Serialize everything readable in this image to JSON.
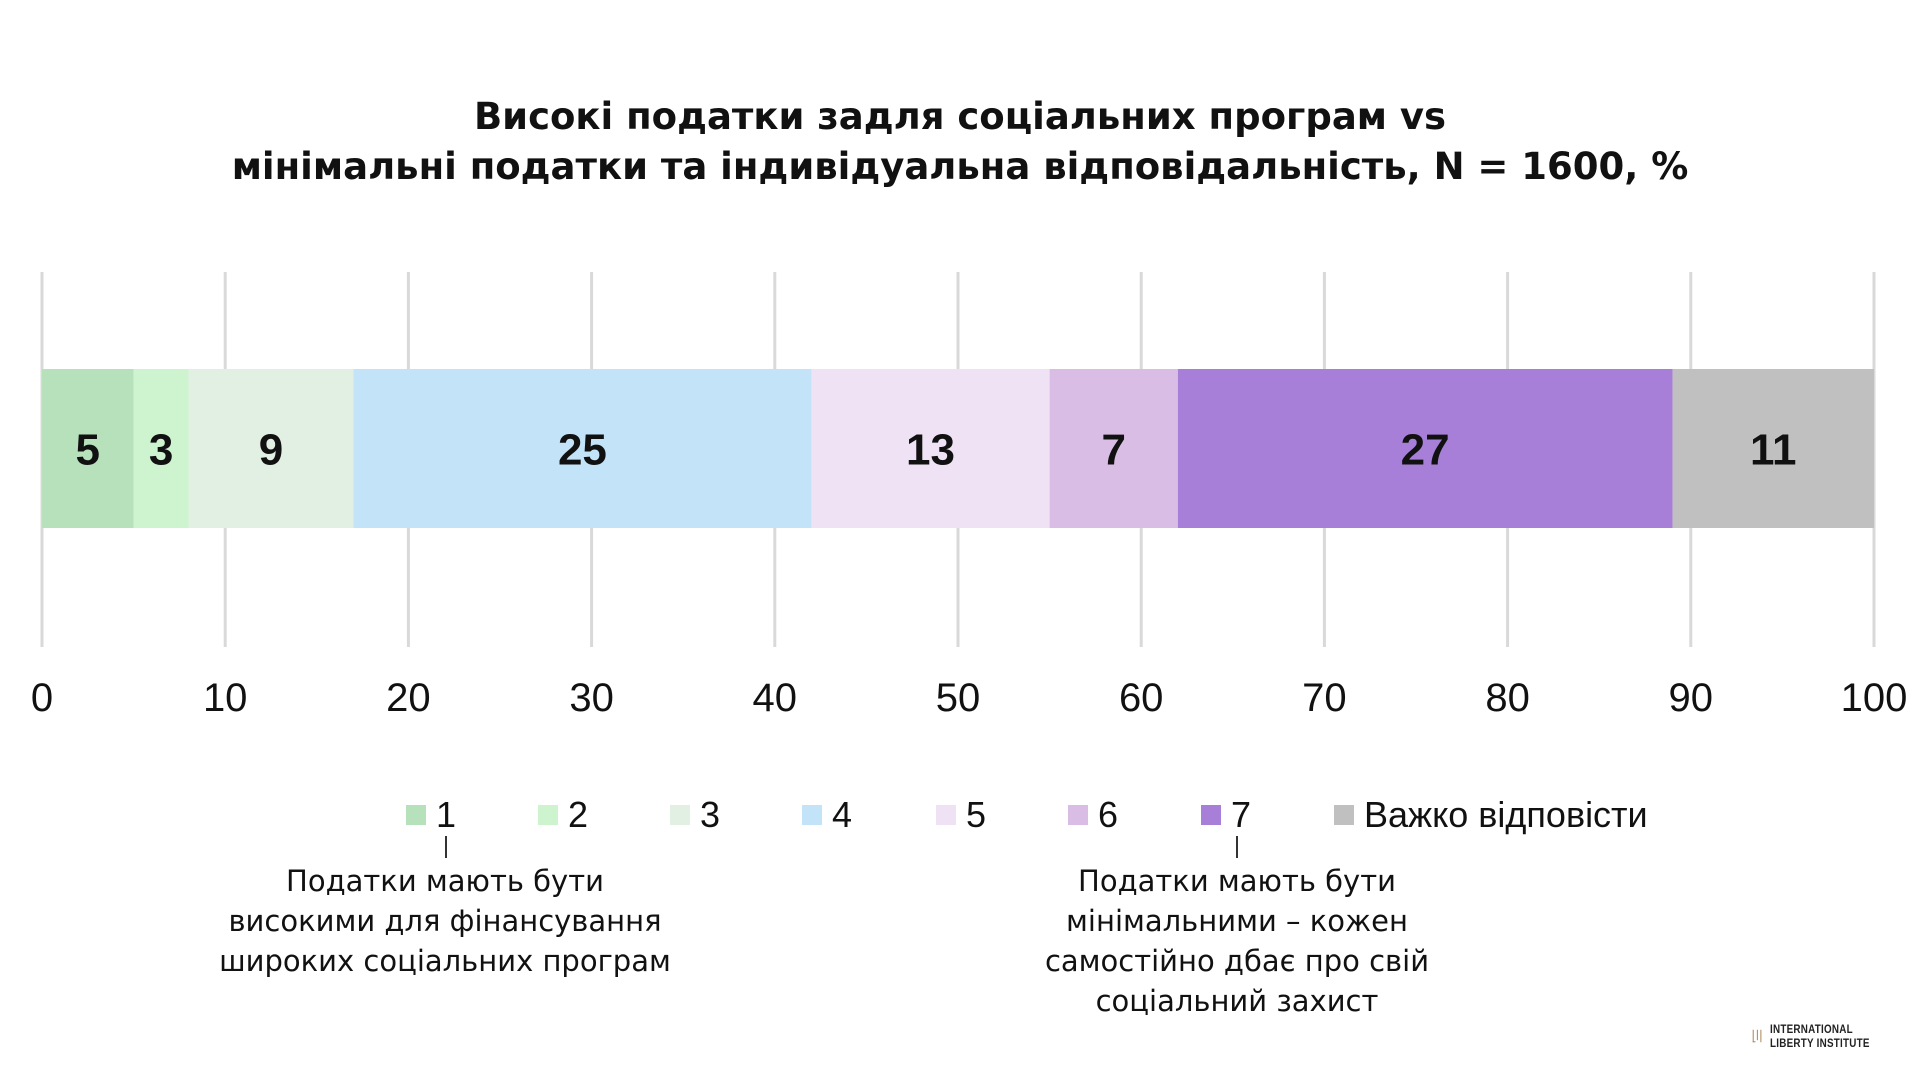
{
  "title": {
    "line1": "Високі податки задля соціальних програм vs",
    "line2": "мінімальні податки та індивідуальна відповідальність, N = 1600, %"
  },
  "chart_data": {
    "type": "bar",
    "orientation": "horizontal-stacked-100",
    "title": "Високі податки задля соціальних програм vs мінімальні податки та індивідуальна відповідальність, N = 1600, %",
    "xlim": [
      0,
      100
    ],
    "x_ticks": [
      "0",
      "10",
      "20",
      "30",
      "40",
      "50",
      "60",
      "70",
      "80",
      "90",
      "100"
    ],
    "grid": true,
    "legend_position": "bottom",
    "series": [
      {
        "name": "1",
        "value": 5,
        "color": "#b7e1bb"
      },
      {
        "name": "2",
        "value": 3,
        "color": "#cdf4cf"
      },
      {
        "name": "3",
        "value": 9,
        "color": "#e2f0e3"
      },
      {
        "name": "4",
        "value": 25,
        "color": "#c2e3f8"
      },
      {
        "name": "5",
        "value": 13,
        "color": "#efe2f4"
      },
      {
        "name": "6",
        "value": 7,
        "color": "#d9bde5"
      },
      {
        "name": "7",
        "value": 27,
        "color": "#a87fd8"
      },
      {
        "name": "Важко відповісти",
        "value": 11,
        "color": "#c0c0c0"
      }
    ]
  },
  "legend": [
    {
      "label": "1",
      "color": "#b7e1bb"
    },
    {
      "label": "2",
      "color": "#cdf4cf"
    },
    {
      "label": "3",
      "color": "#e2f0e3"
    },
    {
      "label": "4",
      "color": "#c2e3f8"
    },
    {
      "label": "5",
      "color": "#efe2f4"
    },
    {
      "label": "6",
      "color": "#d9bde5"
    },
    {
      "label": "7",
      "color": "#a87fd8"
    },
    {
      "label": "Важко відповісти",
      "color": "#c0c0c0"
    }
  ],
  "notes": {
    "left": {
      "line1": "Податки мають бути",
      "line2": "високими для фінансування",
      "line3": "широких соціальних програм"
    },
    "right": {
      "line1": "Податки мають бути",
      "line2": "мінімальними – кожен",
      "line3": "самостійно дбає про свій",
      "line4": "соціальний захист"
    }
  },
  "logo": {
    "line1": "INTERNATIONAL",
    "line2": "LIBERTY INSTITUTE",
    "mark_color": "#b08a5a",
    "text_color": "#222222"
  },
  "colors": {
    "grid": "#d9d9d9",
    "text": "#111111"
  }
}
